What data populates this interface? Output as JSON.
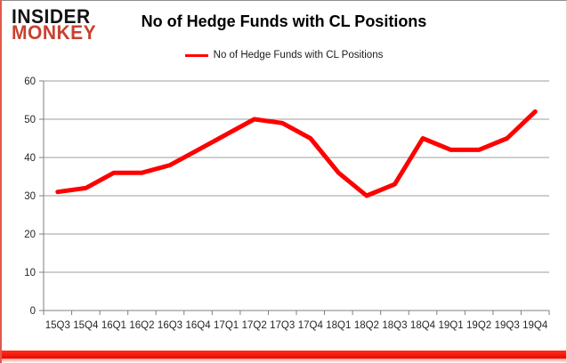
{
  "header": {
    "logo_line1": "INSIDER",
    "logo_line2": "MONKEY",
    "title": "No of Hedge Funds with CL Positions"
  },
  "legend": {
    "label": "No of Hedge Funds with CL Positions",
    "swatch_color": "#ff0000"
  },
  "chart_data": {
    "type": "line",
    "title": "No of Hedge Funds with CL Positions",
    "categories": [
      "15Q3",
      "15Q4",
      "16Q1",
      "16Q2",
      "16Q3",
      "16Q4",
      "17Q1",
      "17Q2",
      "17Q3",
      "17Q4",
      "18Q1",
      "18Q2",
      "18Q3",
      "18Q4",
      "19Q1",
      "19Q2",
      "19Q3",
      "19Q4"
    ],
    "series": [
      {
        "name": "No of Hedge Funds with CL Positions",
        "color": "#ff0000",
        "values": [
          31,
          32,
          36,
          36,
          38,
          42,
          46,
          50,
          49,
          45,
          36,
          30,
          33,
          45,
          42,
          42,
          45,
          52
        ]
      }
    ],
    "xlabel": "",
    "ylabel": "",
    "ylim": [
      0,
      60
    ],
    "yticks": [
      0,
      10,
      20,
      30,
      40,
      50,
      60
    ],
    "grid": true,
    "legend_position": "top"
  },
  "colors": {
    "line_red": "#ff0000",
    "logo_red": "#c84130",
    "grid_gray": "#9c9c9c",
    "axis_gray": "#7f7f7f",
    "axis_text": "#262626",
    "border_bottom_red": "#e90b00"
  }
}
